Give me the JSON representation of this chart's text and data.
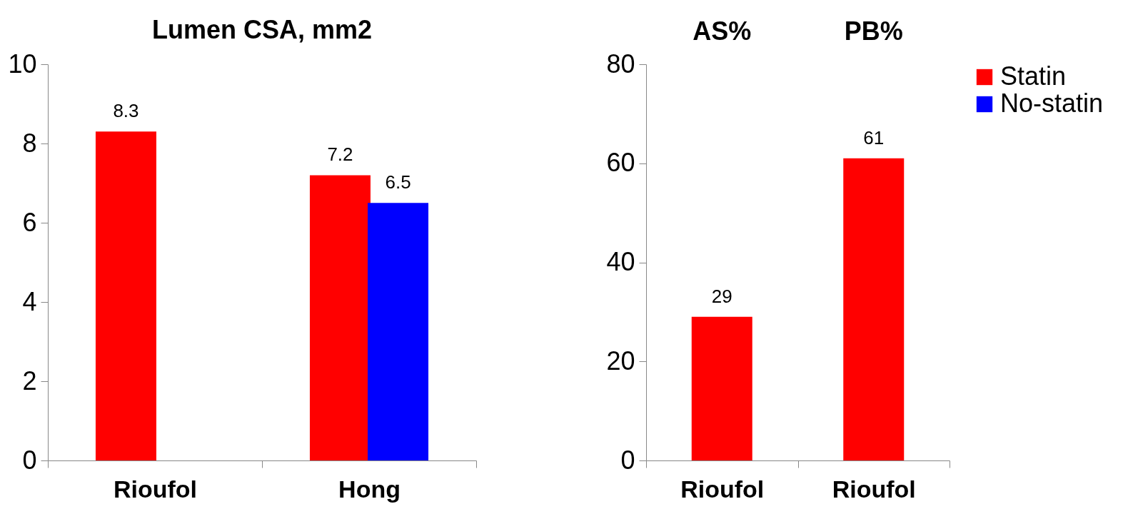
{
  "chart_data": [
    {
      "type": "bar",
      "title": "Lumen CSA, mm2",
      "categories": [
        "Rioufol",
        "Hong"
      ],
      "series": [
        {
          "name": "Statin",
          "color": "#ff0000",
          "values": [
            8.3,
            7.2
          ]
        },
        {
          "name": "No-statin",
          "color": "#0000ff",
          "values": [
            null,
            6.5
          ]
        }
      ],
      "ylim": [
        0,
        10
      ],
      "yticks": [
        0,
        2,
        4,
        6,
        8,
        10
      ],
      "grid": false,
      "legend": "top right",
      "data_labels": true
    },
    {
      "type": "bar",
      "categories": [
        "Rioufol",
        "Rioufol"
      ],
      "annotations": [
        "AS%",
        "PB%"
      ],
      "series": [
        {
          "color": "#ff0000",
          "values": [
            29,
            61
          ]
        }
      ],
      "ylim": [
        0,
        80
      ],
      "yticks": [
        0,
        20,
        40,
        60,
        80
      ],
      "grid": false,
      "data_labels": true
    }
  ]
}
